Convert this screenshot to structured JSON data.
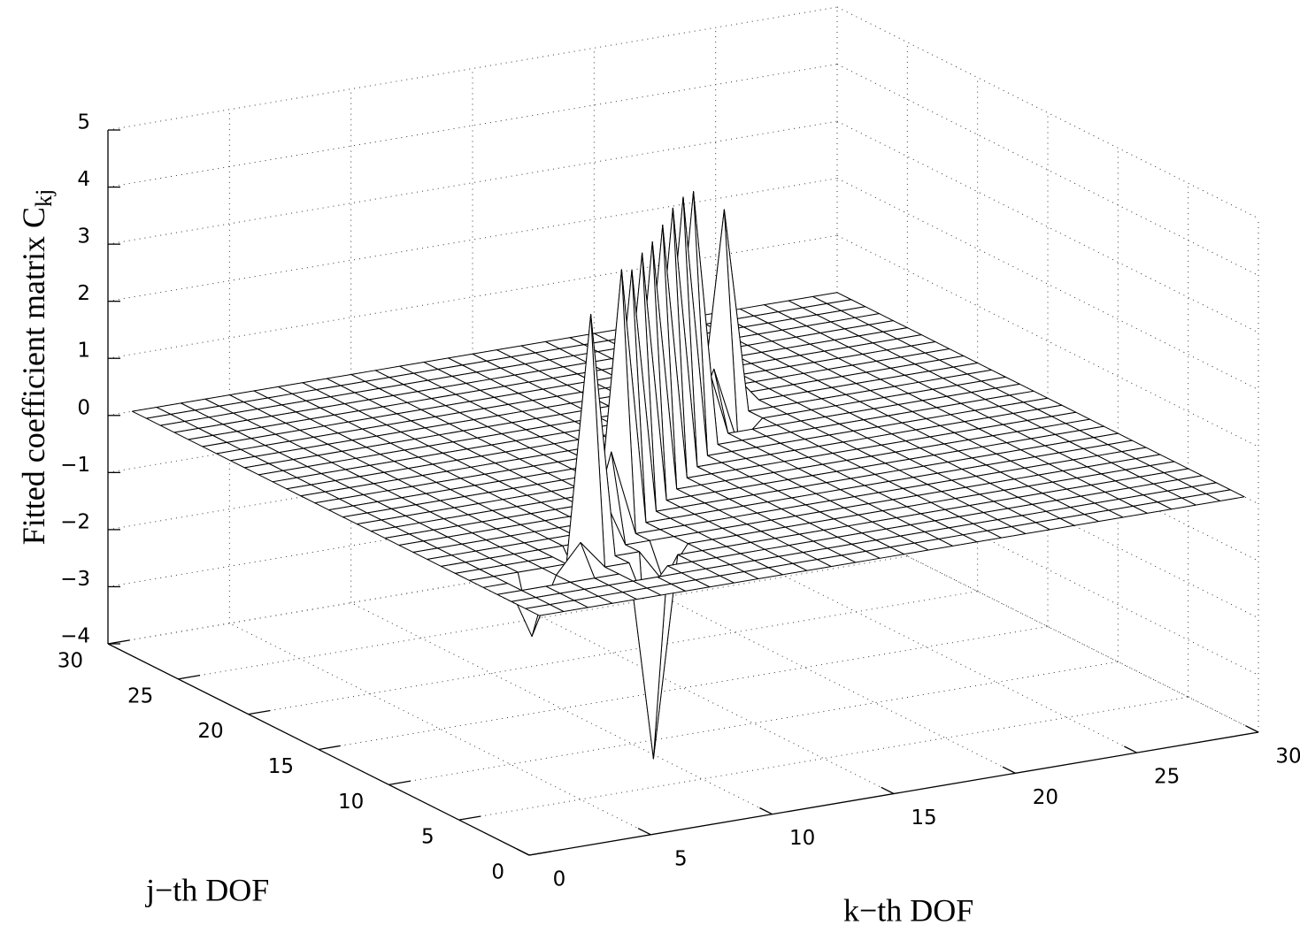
{
  "chart_data": {
    "type": "surface",
    "xlabel": "k−th DOF",
    "ylabel": "j−th DOF",
    "zlabel": "Fitted coefficient matrix C",
    "zlabel_sub": "kj",
    "x": [
      1,
      2,
      3,
      4,
      5,
      6,
      7,
      8,
      9,
      10,
      11,
      12,
      13,
      14,
      15,
      16,
      17,
      18,
      19,
      20,
      21,
      22,
      23,
      24,
      25,
      26,
      27,
      28,
      29,
      30
    ],
    "y": [
      1,
      2,
      3,
      4,
      5,
      6,
      7,
      8,
      9,
      10,
      11,
      12,
      13,
      14,
      15,
      16,
      17,
      18,
      19,
      20,
      21,
      22,
      23,
      24,
      25,
      26,
      27,
      28,
      29,
      30
    ],
    "z": [
      [
        0,
        0,
        0,
        0,
        0,
        0,
        0,
        0,
        0,
        0,
        0,
        0,
        0,
        0,
        0,
        0,
        0,
        0,
        0,
        0,
        0,
        0,
        0,
        0,
        0,
        0,
        0,
        0,
        0,
        0
      ],
      [
        0,
        0,
        0,
        0,
        0,
        0,
        0,
        0,
        0,
        0,
        0,
        0,
        0,
        0,
        0,
        0,
        0,
        0,
        0,
        0,
        0,
        0,
        0,
        0,
        0,
        0,
        0,
        0,
        0,
        0
      ],
      [
        0,
        0,
        0,
        0,
        0,
        0,
        0,
        0,
        0,
        0,
        0,
        0,
        0,
        0,
        0,
        0,
        0,
        0,
        0,
        0,
        0,
        0,
        0,
        0,
        0,
        0,
        0,
        0,
        0,
        0
      ],
      [
        0,
        0,
        0,
        0,
        0,
        0,
        -0.5,
        0,
        0,
        0,
        0,
        0,
        0,
        0,
        0,
        0,
        0,
        0,
        0,
        0,
        0,
        0,
        0,
        0,
        0,
        0,
        0,
        0,
        0,
        0
      ],
      [
        0,
        0,
        -1,
        0,
        0.5,
        0,
        0,
        -3.5,
        0,
        0,
        0,
        0,
        0,
        0,
        0,
        0,
        0,
        0,
        0,
        0,
        0,
        0,
        0,
        0,
        0,
        0,
        0,
        0,
        0,
        0
      ],
      [
        0,
        0,
        0,
        0,
        0,
        4.3,
        0,
        0,
        -0.6,
        0,
        0,
        0,
        0,
        0,
        0,
        0,
        0,
        0,
        0,
        0,
        0,
        0,
        0,
        0,
        0,
        0,
        0,
        0,
        0,
        0
      ],
      [
        0,
        0,
        0,
        0,
        0,
        -0.4,
        1,
        0,
        0,
        0,
        0,
        0,
        0,
        0,
        0,
        0,
        0,
        0,
        0,
        0,
        0,
        0,
        0,
        0,
        0,
        0,
        0,
        0,
        0,
        0
      ],
      [
        0,
        0,
        0,
        0,
        0,
        0,
        0,
        1.5,
        0,
        0,
        0,
        0,
        0,
        0,
        0,
        0,
        0,
        0,
        0,
        0,
        0,
        0,
        0,
        0,
        0,
        0,
        0,
        0,
        0,
        0
      ],
      [
        0,
        0,
        0,
        0,
        0,
        0,
        0,
        0,
        4.5,
        0,
        0,
        0,
        0,
        0,
        0,
        0,
        0,
        0,
        0,
        0,
        0,
        0,
        0,
        0,
        0,
        0,
        0,
        0,
        0,
        0
      ],
      [
        0,
        0,
        0,
        0,
        0,
        0,
        0,
        0,
        0,
        4.3,
        0,
        0,
        0,
        0,
        0,
        0,
        0,
        0,
        0,
        0,
        0,
        0,
        0,
        0,
        0,
        0,
        0,
        0,
        0,
        0
      ],
      [
        0,
        0,
        0,
        0,
        0,
        0,
        0,
        0,
        0,
        0,
        4.4,
        0,
        0,
        0,
        0,
        0,
        0,
        0,
        0,
        0,
        0,
        0,
        0,
        0,
        0,
        0,
        0,
        0,
        0,
        0
      ],
      [
        0,
        0,
        0,
        0,
        0,
        0,
        0,
        0,
        0,
        0,
        -0.3,
        4.4,
        0,
        0,
        0,
        0,
        0,
        0,
        0,
        0,
        0,
        0,
        0,
        0,
        0,
        0,
        0,
        0,
        0,
        0
      ],
      [
        0,
        0,
        0,
        0,
        0,
        0,
        0,
        0,
        0,
        0,
        0,
        0,
        4.5,
        0,
        0,
        0,
        0,
        0,
        0,
        0,
        0,
        0,
        0,
        0,
        0,
        0,
        0,
        0,
        0,
        0
      ],
      [
        0,
        0,
        0,
        0,
        0,
        0,
        0,
        0,
        0,
        0,
        0,
        0,
        0,
        4.6,
        0,
        0,
        0,
        0,
        0,
        0,
        0,
        0,
        0,
        0,
        0,
        0,
        0,
        0,
        0,
        0
      ],
      [
        0,
        0,
        0,
        0,
        0,
        0,
        0,
        0,
        0,
        0,
        0,
        0,
        0,
        0,
        4.6,
        0,
        0,
        0,
        0,
        0,
        0,
        0,
        0,
        0,
        0,
        0,
        0,
        0,
        0,
        0
      ],
      [
        0,
        0,
        0,
        0,
        0,
        0,
        0,
        0,
        0,
        0,
        0,
        0,
        0,
        0,
        0,
        4.5,
        0,
        0,
        0,
        0,
        0,
        0,
        0,
        0,
        0,
        0,
        0,
        0,
        0,
        0
      ],
      [
        0,
        0,
        0,
        0,
        0,
        0,
        0,
        0,
        0,
        0,
        0,
        0,
        0,
        0,
        0,
        0,
        1.5,
        0,
        0,
        0,
        0,
        0,
        0,
        0,
        0,
        0,
        0,
        0,
        0,
        0
      ],
      [
        0,
        0,
        0,
        0,
        0,
        0,
        0,
        0,
        0,
        0,
        0,
        0,
        0,
        0,
        0,
        0,
        0,
        1,
        -0.4,
        0,
        0,
        0,
        0,
        0,
        0,
        0,
        0,
        0,
        0,
        0
      ],
      [
        0,
        0,
        0,
        0,
        0,
        0,
        0,
        0,
        0,
        0,
        0,
        0,
        0,
        0,
        0,
        0,
        0,
        0,
        3.6,
        0,
        0,
        0,
        0,
        0,
        0,
        0,
        0,
        0,
        0,
        0
      ],
      [
        0,
        0,
        0,
        0,
        0,
        0,
        0,
        0,
        0,
        0,
        0,
        0,
        0,
        0,
        0,
        0,
        0,
        0,
        0,
        0.5,
        0,
        0,
        0,
        0,
        0,
        0,
        0,
        0,
        0,
        0
      ],
      [
        0,
        0,
        0,
        0,
        0,
        0,
        0,
        0,
        0,
        0,
        0,
        0,
        0,
        0,
        0,
        0,
        0,
        0,
        0,
        -0.3,
        0,
        0,
        0,
        0,
        0,
        0,
        0,
        0,
        0,
        0
      ],
      [
        0,
        0,
        0,
        0,
        0,
        0,
        0,
        0,
        0,
        0,
        0,
        0,
        0,
        0,
        0,
        0,
        0,
        0,
        0,
        0,
        0,
        0,
        0,
        0,
        0,
        0,
        0,
        0,
        0,
        0
      ],
      [
        0,
        0,
        0,
        0,
        0,
        0,
        0,
        0,
        0,
        0,
        0,
        0,
        0,
        0,
        0,
        0,
        0,
        0,
        0,
        0,
        0,
        0,
        0,
        0,
        0,
        0,
        0,
        0,
        0,
        0
      ],
      [
        0,
        0,
        0,
        0,
        0,
        0,
        0,
        0,
        0,
        0,
        0,
        0,
        0,
        0,
        0,
        0,
        0,
        0,
        0,
        0,
        0,
        0,
        0,
        0,
        0,
        0,
        0,
        0,
        0,
        0
      ],
      [
        0,
        0,
        0,
        0,
        0,
        0,
        0,
        0,
        0,
        0,
        0,
        0,
        0,
        0,
        0,
        0,
        0,
        0,
        0,
        0,
        0,
        0,
        0,
        0,
        0,
        0,
        0,
        0,
        0,
        0
      ],
      [
        0,
        0,
        0,
        0,
        0,
        0,
        0,
        0,
        0,
        0,
        0,
        0,
        0,
        0,
        0,
        0,
        0,
        0,
        0,
        0,
        0,
        0,
        0,
        0,
        0,
        0,
        0,
        0,
        0,
        0
      ],
      [
        0,
        0,
        0,
        0,
        0,
        0,
        0,
        0,
        0,
        0,
        0,
        0,
        0,
        0,
        0,
        0,
        0,
        0,
        0,
        0,
        0,
        0,
        0,
        0,
        0,
        0,
        0,
        0,
        0,
        0
      ],
      [
        0,
        0,
        0,
        0,
        0,
        0,
        0,
        0,
        0,
        0,
        0,
        0,
        0,
        0,
        0,
        0,
        0,
        0,
        0,
        0,
        0,
        0,
        0,
        0,
        0,
        0,
        0,
        0,
        0,
        0
      ],
      [
        0,
        0,
        0,
        0,
        0,
        0,
        0,
        0,
        0,
        0,
        0,
        0,
        0,
        0,
        0,
        0,
        0,
        0,
        0,
        0,
        0,
        0,
        0,
        0,
        0,
        0,
        0,
        0,
        0,
        0
      ],
      [
        0,
        0,
        0,
        0,
        0,
        0,
        0,
        0,
        0,
        0,
        0,
        0,
        0,
        0,
        0,
        0,
        0,
        0,
        0,
        0,
        0,
        0,
        0,
        0,
        0,
        0,
        0,
        0,
        0,
        0
      ]
    ],
    "xlim": [
      0,
      30
    ],
    "ylim": [
      0,
      30
    ],
    "zlim": [
      -4,
      5
    ],
    "xticks": [
      0,
      5,
      10,
      15,
      20,
      25,
      30
    ],
    "yticks": [
      0,
      5,
      10,
      15,
      20,
      25,
      30
    ],
    "zticks": [
      {
        "value": -4,
        "label": "−4"
      },
      {
        "value": -3,
        "label": "−3"
      },
      {
        "value": -2,
        "label": "−2"
      },
      {
        "value": -1,
        "label": "−1"
      },
      0,
      1,
      2,
      3,
      4,
      5
    ],
    "grid": true,
    "color": "#ffffff",
    "edge_color": "#000000"
  }
}
